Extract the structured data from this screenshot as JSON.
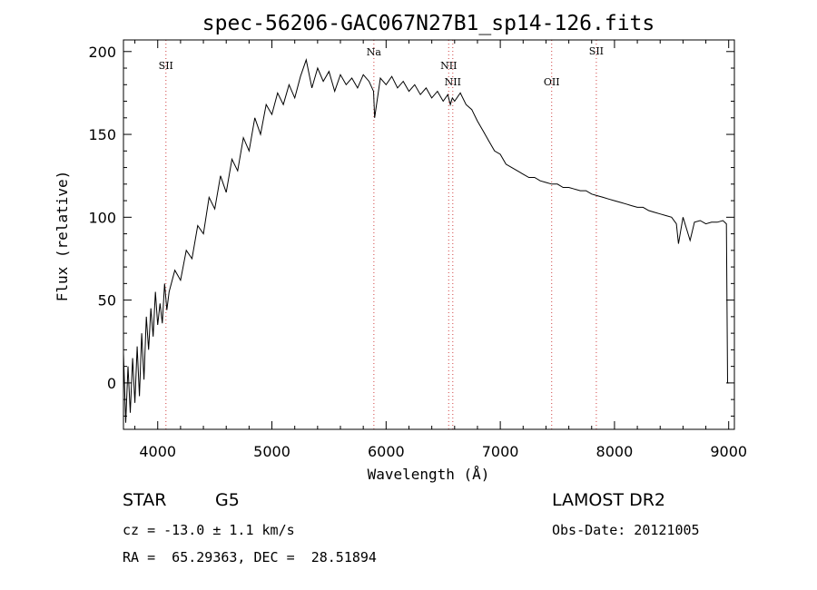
{
  "chart_data": {
    "type": "line",
    "title": "spec-56206-GAC067N27B1_sp14-126.fits",
    "xlabel": "Wavelength (Å)",
    "ylabel": "Flux (relative)",
    "xlim": [
      3700,
      9050
    ],
    "ylim": [
      -28,
      207
    ],
    "xticks": [
      4000,
      5000,
      6000,
      7000,
      8000,
      9000
    ],
    "yticks": [
      0,
      50,
      100,
      150,
      200
    ],
    "grid": false,
    "line_color": "#000000",
    "marker_color": "#d04040",
    "series": [
      {
        "x": [
          3700,
          3720,
          3740,
          3760,
          3780,
          3800,
          3820,
          3840,
          3860,
          3880,
          3900,
          3920,
          3940,
          3960,
          3980,
          4000,
          4020,
          4040,
          4060,
          4080,
          4100,
          4150,
          4200,
          4250,
          4300,
          4350,
          4400,
          4450,
          4500,
          4550,
          4600,
          4650,
          4700,
          4750,
          4800,
          4850,
          4900,
          4950,
          5000,
          5050,
          5100,
          5150,
          5200,
          5250,
          5300,
          5350,
          5400,
          5450,
          5500,
          5550,
          5600,
          5650,
          5700,
          5750,
          5800,
          5850,
          5890,
          5900,
          5950,
          6000,
          6050,
          6100,
          6150,
          6200,
          6250,
          6300,
          6350,
          6400,
          6450,
          6500,
          6540,
          6563,
          6580,
          6600,
          6650,
          6700,
          6750,
          6800,
          6850,
          6900,
          6950,
          7000,
          7050,
          7100,
          7150,
          7200,
          7250,
          7300,
          7350,
          7400,
          7450,
          7500,
          7550,
          7600,
          7650,
          7700,
          7750,
          7800,
          7850,
          7900,
          7950,
          8000,
          8050,
          8100,
          8150,
          8200,
          8250,
          8300,
          8350,
          8400,
          8450,
          8500,
          8542,
          8560,
          8600,
          8662,
          8700,
          8750,
          8800,
          8850,
          8900,
          8950,
          8980,
          8990,
          9000
        ],
        "y": [
          18,
          -24,
          10,
          -18,
          15,
          -12,
          22,
          -8,
          30,
          2,
          40,
          20,
          45,
          28,
          55,
          35,
          48,
          36,
          60,
          44,
          55,
          68,
          62,
          80,
          75,
          95,
          90,
          112,
          105,
          125,
          115,
          135,
          128,
          148,
          140,
          160,
          150,
          168,
          162,
          175,
          168,
          180,
          172,
          185,
          195,
          178,
          190,
          182,
          188,
          176,
          186,
          180,
          184,
          178,
          186,
          182,
          176,
          160,
          184,
          180,
          185,
          178,
          182,
          176,
          180,
          174,
          178,
          172,
          176,
          170,
          174,
          168,
          172,
          170,
          175,
          168,
          165,
          158,
          152,
          146,
          140,
          138,
          132,
          130,
          128,
          126,
          124,
          124,
          122,
          121,
          120,
          120,
          118,
          118,
          117,
          116,
          116,
          114,
          113,
          112,
          111,
          110,
          109,
          108,
          107,
          106,
          106,
          104,
          103,
          102,
          101,
          100,
          96,
          84,
          100,
          86,
          97,
          98,
          96,
          97,
          97,
          98,
          96,
          0,
          0
        ]
      }
    ],
    "spectral_lines": [
      {
        "label": "SII",
        "x": 4072
      },
      {
        "label": "Na",
        "x": 5893
      },
      {
        "label": "NII",
        "x": 6548
      },
      {
        "label": "NII",
        "x": 6584
      },
      {
        "label": "OII",
        "x": 7450
      },
      {
        "label": "SII",
        "x": 7841
      }
    ]
  },
  "info": {
    "class": "STAR",
    "subclass": "G5",
    "survey": "LAMOST DR2",
    "cz": "cz = -13.0 ± 1.1 km/s",
    "obsdate": "Obs-Date: 20121005",
    "radec": "RA =  65.29363, DEC =  28.51894"
  }
}
